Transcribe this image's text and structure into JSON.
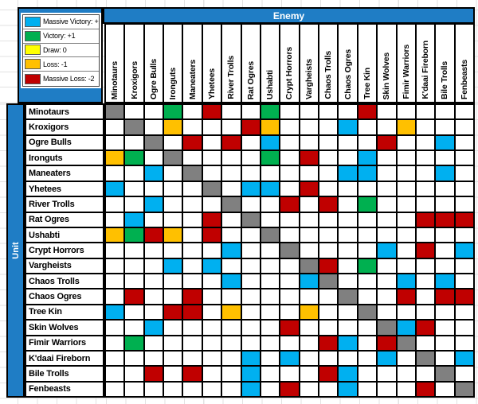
{
  "axes": {
    "column_axis_label": "Enemy",
    "row_axis_label": "Unit"
  },
  "colors": {
    "2": "#00B0F0",
    "1": "#00B050",
    "0": "#FFFF00",
    "-1": "#FFC000",
    "-2": "#C00000",
    "S": "#808080",
    "blank": "#FFFFFF",
    "panel_blue": "#1F7DC5",
    "grid_border": "#000000",
    "faint_gridline": "#E2E2E2"
  },
  "legend": {
    "items": [
      {
        "label": "Massive Victory: +2",
        "code": "2"
      },
      {
        "label": "Victory: +1",
        "code": "1"
      },
      {
        "label": "Draw: 0",
        "code": "0"
      },
      {
        "label": "Loss: -1",
        "code": "-1"
      },
      {
        "label": "Massive Loss: -2",
        "code": "-2"
      }
    ]
  },
  "chart_data": {
    "type": "heatmap",
    "title": "",
    "col_axis_label": "Enemy",
    "row_axis_label": "Unit",
    "value_meaning": {
      "2": "Massive Victory: +2",
      "1": "Victory: +1",
      "0": "Draw: 0",
      "-1": "Loss: -1",
      "-2": "Massive Loss: -2",
      "S": "same unit (diagonal, gray)",
      "": "no result (blank)"
    },
    "categories": [
      "Minotaurs",
      "Kroxigors",
      "Ogre Bulls",
      "Ironguts",
      "Maneaters",
      "Yhetees",
      "River Trolls",
      "Rat Ogres",
      "Ushabti",
      "Crypt Horrors",
      "Vargheists",
      "Chaos Trolls",
      "Chaos Ogres",
      "Tree Kin",
      "Skin Wolves",
      "Fimir Warriors",
      "K'daai Fireborn",
      "Bile Trolls",
      "Fenbeasts"
    ],
    "matrix": [
      [
        "S",
        "",
        "",
        "1",
        "",
        "-2",
        "",
        "",
        "1",
        "",
        "",
        "",
        "",
        "-2",
        "",
        "",
        "",
        "",
        ""
      ],
      [
        "",
        "S",
        "",
        "-1",
        "",
        "",
        "",
        "-2",
        "-1",
        "",
        "",
        "",
        "2",
        "",
        "",
        "-1",
        "",
        "",
        ""
      ],
      [
        "",
        "",
        "S",
        "",
        "-2",
        "",
        "-2",
        "",
        "2",
        "",
        "",
        "",
        "",
        "",
        "-2",
        "",
        "",
        "2",
        ""
      ],
      [
        "-1",
        "1",
        "",
        "S",
        "",
        "",
        "",
        "",
        "1",
        "",
        "-2",
        "",
        "",
        "2",
        "",
        "",
        "",
        "",
        ""
      ],
      [
        "",
        "",
        "2",
        "",
        "S",
        "",
        "",
        "",
        "",
        "",
        "",
        "",
        "2",
        "2",
        "",
        "",
        "",
        "2",
        ""
      ],
      [
        "2",
        "",
        "",
        "",
        "",
        "S",
        "",
        "2",
        "2",
        "",
        "-2",
        "",
        "",
        "",
        "",
        "",
        "",
        "",
        ""
      ],
      [
        "",
        "",
        "2",
        "",
        "",
        "",
        "S",
        "",
        "",
        "-2",
        "",
        "-2",
        "",
        "1",
        "",
        "",
        "",
        "",
        ""
      ],
      [
        "",
        "2",
        "",
        "",
        "",
        "-2",
        "",
        "S",
        "",
        "",
        "",
        "",
        "",
        "",
        "",
        "",
        "-2",
        "-2",
        "-2"
      ],
      [
        "-1",
        "1",
        "-2",
        "-1",
        "",
        "-2",
        "",
        "",
        "S",
        "",
        "",
        "",
        "",
        "",
        "",
        "",
        "",
        "",
        ""
      ],
      [
        "",
        "",
        "",
        "",
        "",
        "",
        "2",
        "",
        "",
        "S",
        "",
        "",
        "",
        "",
        "2",
        "",
        "-2",
        "",
        "2"
      ],
      [
        "",
        "",
        "",
        "2",
        "",
        "2",
        "",
        "",
        "",
        "",
        "S",
        "-2",
        "",
        "1",
        "",
        "",
        "",
        "",
        ""
      ],
      [
        "",
        "",
        "",
        "",
        "",
        "",
        "2",
        "",
        "",
        "",
        "2",
        "S",
        "",
        "",
        "",
        "2",
        "",
        "2",
        ""
      ],
      [
        "",
        "-2",
        "",
        "",
        "-2",
        "",
        "",
        "",
        "",
        "",
        "",
        "",
        "S",
        "",
        "",
        "-2",
        "",
        "-2",
        "-2"
      ],
      [
        "2",
        "",
        "",
        "-2",
        "-2",
        "",
        "-1",
        "",
        "",
        "",
        "-1",
        "",
        "",
        "S",
        "",
        "",
        "",
        "",
        ""
      ],
      [
        "",
        "",
        "2",
        "",
        "",
        "",
        "",
        "",
        "",
        "-2",
        "",
        "",
        "",
        "",
        "S",
        "2",
        "-2",
        "",
        ""
      ],
      [
        "",
        "1",
        "",
        "",
        "",
        "",
        "",
        "",
        "",
        "",
        "",
        "-2",
        "2",
        "",
        "-2",
        "S",
        "",
        "",
        ""
      ],
      [
        "",
        "",
        "",
        "",
        "",
        "",
        "",
        "2",
        "",
        "2",
        "",
        "",
        "",
        "",
        "2",
        "",
        "S",
        "",
        "2"
      ],
      [
        "",
        "",
        "-2",
        "",
        "-2",
        "",
        "",
        "2",
        "",
        "",
        "",
        "-2",
        "2",
        "",
        "",
        "",
        "",
        "S",
        ""
      ],
      [
        "",
        "",
        "",
        "",
        "",
        "",
        "",
        "2",
        "",
        "-2",
        "",
        "",
        "2",
        "",
        "",
        "",
        "-2",
        "",
        "S"
      ]
    ]
  }
}
